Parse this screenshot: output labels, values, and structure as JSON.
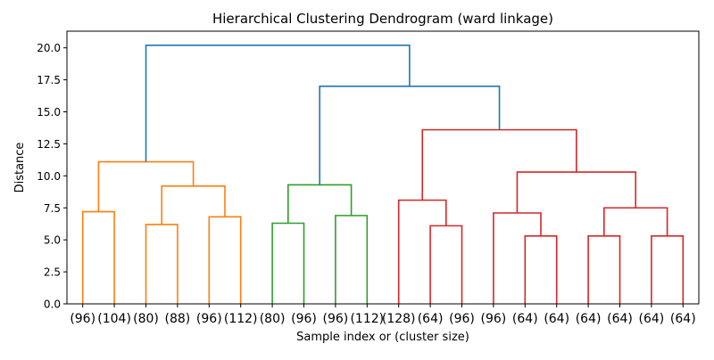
{
  "chart_data": {
    "type": "dendrogram",
    "title": "Hierarchical Clustering Dendrogram (ward linkage)",
    "xlabel": "Sample index or (cluster size)",
    "ylabel": "Distance",
    "ylim": [
      0,
      21.3
    ],
    "yticks": [
      "0.0",
      "2.5",
      "5.0",
      "7.5",
      "10.0",
      "12.5",
      "15.0",
      "17.5",
      "20.0"
    ],
    "leaf_labels": [
      "(96)",
      "(104)",
      "(80)",
      "(88)",
      "(96)",
      "(112)",
      "(80)",
      "(96)",
      "(96)",
      "(112)",
      "(128)",
      "(64)",
      "(96)",
      "(96)",
      "(64)",
      "(64)",
      "(64)",
      "(64)",
      "(64)",
      "(64)"
    ],
    "cluster_colors": {
      "orange": "#ff7f0e",
      "green": "#2ca02c",
      "red": "#d62728",
      "link": "#1f77b4"
    },
    "merges": [
      {
        "left": 0,
        "right": 1,
        "height": 7.2,
        "color": "orange"
      },
      {
        "left": 2,
        "right": 3,
        "height": 6.2,
        "color": "orange"
      },
      {
        "left": 4,
        "right": 5,
        "height": 6.8,
        "color": "orange"
      },
      {
        "left": 21,
        "right": 22,
        "height": 9.2,
        "color": "orange"
      },
      {
        "left": 20,
        "right": 23,
        "height": 11.1,
        "color": "orange"
      },
      {
        "left": 6,
        "right": 7,
        "height": 6.3,
        "color": "green"
      },
      {
        "left": 8,
        "right": 9,
        "height": 6.9,
        "color": "green"
      },
      {
        "left": 25,
        "right": 26,
        "height": 9.3,
        "color": "green"
      },
      {
        "left": 11,
        "right": 12,
        "height": 6.1,
        "color": "red"
      },
      {
        "left": 10,
        "right": 28,
        "height": 8.1,
        "color": "red"
      },
      {
        "left": 14,
        "right": 15,
        "height": 5.3,
        "color": "red"
      },
      {
        "left": 13,
        "right": 30,
        "height": 7.1,
        "color": "red"
      },
      {
        "left": 16,
        "right": 17,
        "height": 5.3,
        "color": "red"
      },
      {
        "left": 18,
        "right": 19,
        "height": 5.3,
        "color": "red"
      },
      {
        "left": 32,
        "right": 33,
        "height": 7.5,
        "color": "red"
      },
      {
        "left": 31,
        "right": 34,
        "height": 10.3,
        "color": "red"
      },
      {
        "left": 29,
        "right": 35,
        "height": 13.6,
        "color": "red"
      },
      {
        "left": 27,
        "right": 36,
        "height": 17.0,
        "color": "link"
      },
      {
        "left": 24,
        "right": 37,
        "height": 20.2,
        "color": "link"
      }
    ]
  }
}
